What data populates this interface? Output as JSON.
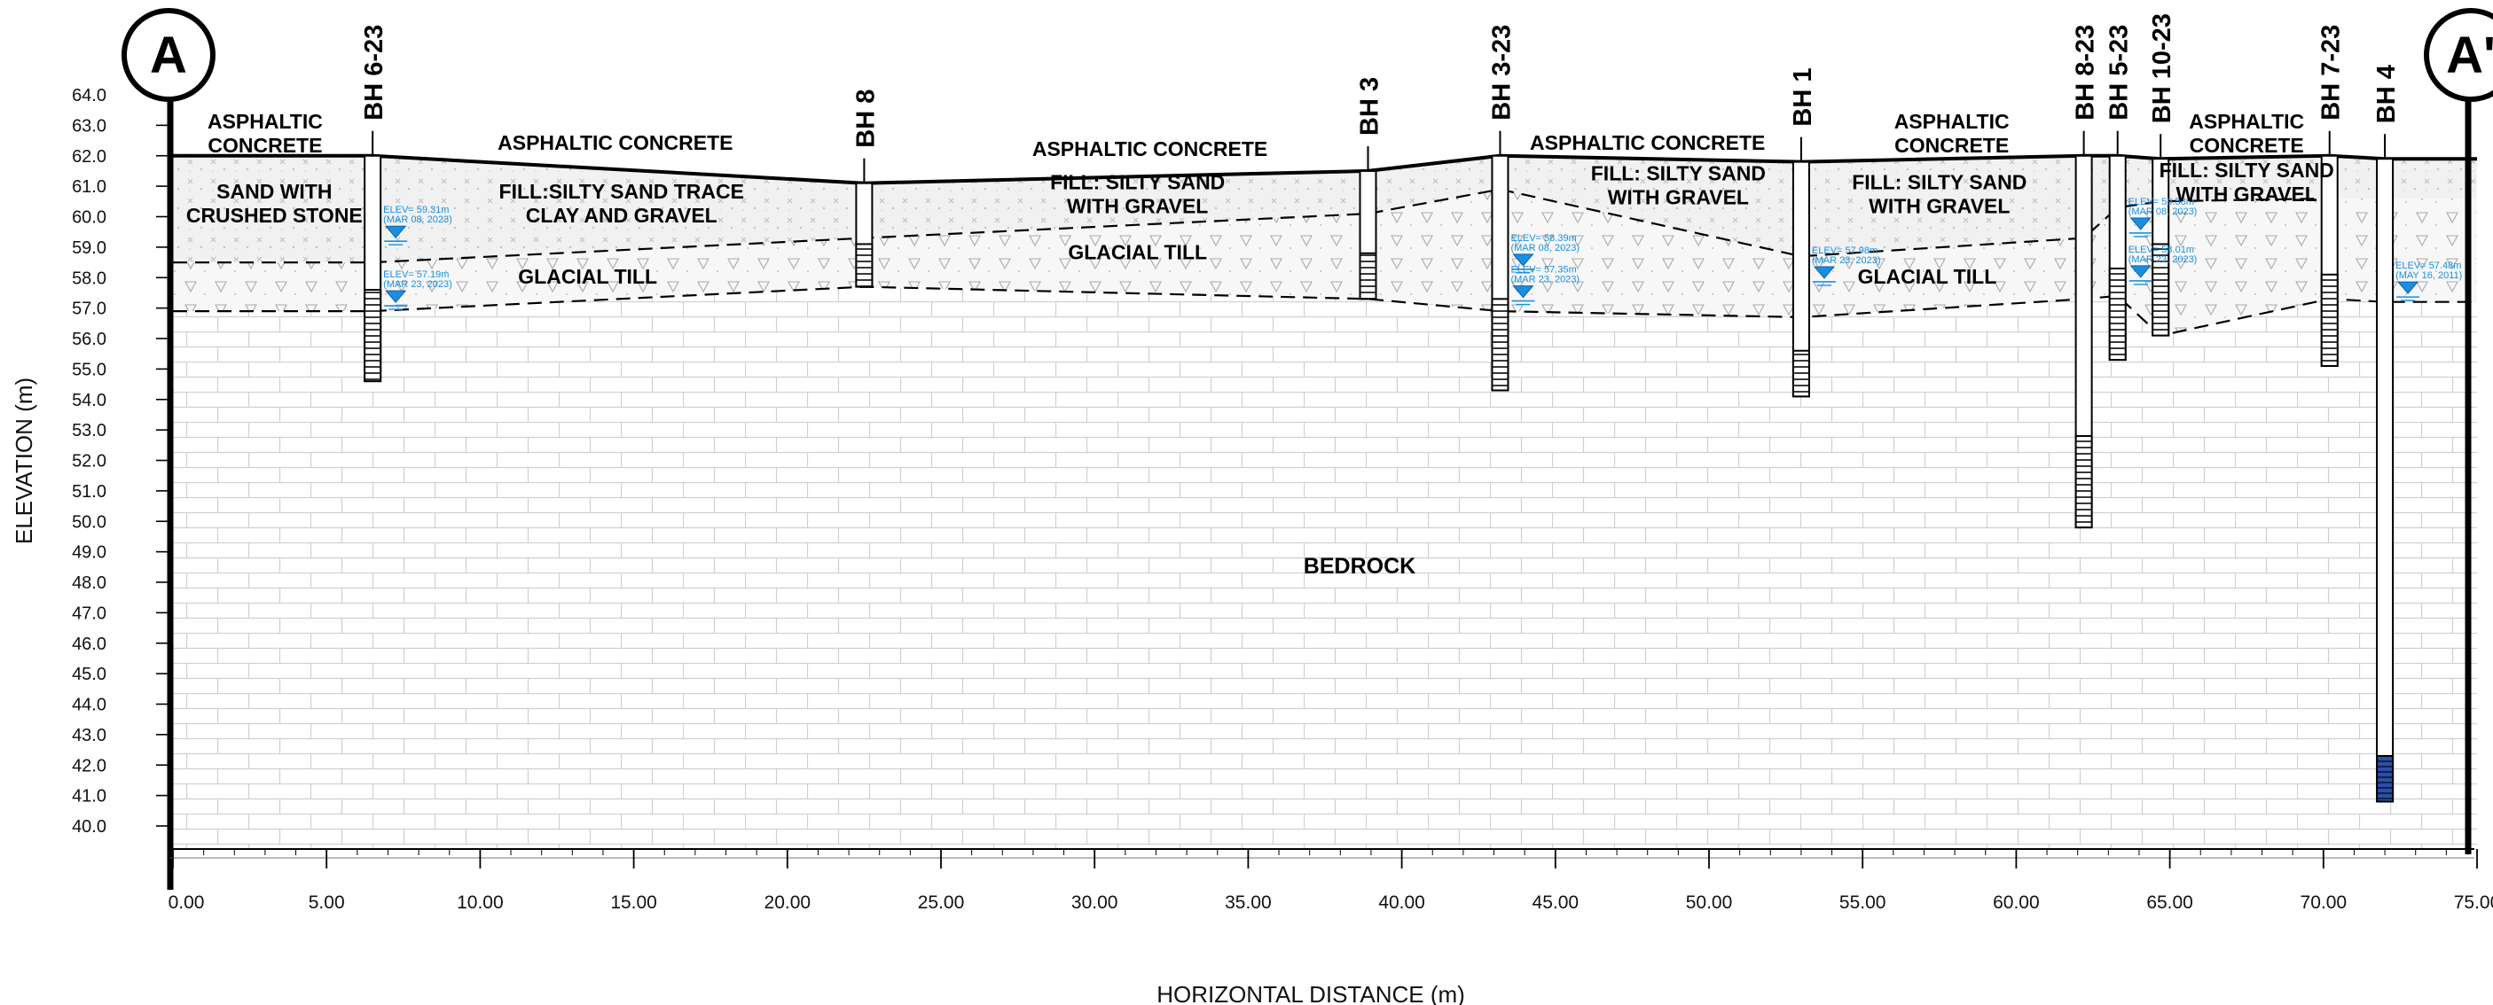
{
  "section": {
    "start_marker": "A",
    "end_marker": "A'",
    "ylabel": "ELEVATION (m)",
    "xlabel": "HORIZONTAL DISTANCE (m)",
    "bedrock_label": "BEDROCK"
  },
  "chart_data": {
    "type": "diagram",
    "x_range": [
      0,
      75
    ],
    "y_range": [
      40,
      64
    ],
    "x_ticks": [
      "0.00",
      "5.00",
      "10.00",
      "15.00",
      "20.00",
      "25.00",
      "30.00",
      "35.00",
      "40.00",
      "45.00",
      "50.00",
      "55.00",
      "60.00",
      "65.00",
      "70.00",
      "75.00"
    ],
    "y_ticks": [
      "64.0",
      "63.0",
      "62.0",
      "61.0",
      "60.0",
      "59.0",
      "58.0",
      "57.0",
      "56.0",
      "55.0",
      "54.0",
      "53.0",
      "52.0",
      "51.0",
      "50.0",
      "49.0",
      "48.0",
      "47.0",
      "46.0",
      "45.0",
      "44.0",
      "43.0",
      "42.0",
      "41.0",
      "40.0"
    ],
    "ground_surface": [
      [
        0,
        62.0
      ],
      [
        6.5,
        62.0
      ],
      [
        22.5,
        61.1
      ],
      [
        38.9,
        61.5
      ],
      [
        43.2,
        62.0
      ],
      [
        53.0,
        61.8
      ],
      [
        62.2,
        62.0
      ],
      [
        63.3,
        62.0
      ],
      [
        64.7,
        61.9
      ],
      [
        70.2,
        62.0
      ],
      [
        72,
        61.9
      ],
      [
        75,
        61.9
      ]
    ],
    "fill_base": [
      [
        0,
        58.5
      ],
      [
        6.5,
        58.5
      ],
      [
        22.5,
        59.3
      ],
      [
        38.9,
        60.1
      ],
      [
        43.2,
        60.9
      ],
      [
        53.0,
        58.7
      ],
      [
        62.2,
        59.3
      ],
      [
        63.3,
        60.3
      ],
      [
        64.7,
        60.5
      ],
      [
        70.2,
        60.6
      ]
    ],
    "bedrock_surface": [
      [
        0,
        56.9
      ],
      [
        6.5,
        56.9
      ],
      [
        22.5,
        57.7
      ],
      [
        38.9,
        57.3
      ],
      [
        43.2,
        56.9
      ],
      [
        53.0,
        56.7
      ],
      [
        62.2,
        57.3
      ],
      [
        63.3,
        57.4
      ],
      [
        64.7,
        56.1
      ],
      [
        70.2,
        57.3
      ],
      [
        72,
        57.2
      ],
      [
        75,
        57.2
      ]
    ],
    "boreholes": [
      {
        "name": "BH 6-23",
        "x": 6.5,
        "top": 62.0,
        "bottom": 54.6,
        "screen_top": 57.6,
        "screen_bottom": 54.6,
        "screen_style": "hatched"
      },
      {
        "name": "BH 8",
        "x": 22.5,
        "top": 61.1,
        "bottom": 57.7,
        "screen_top": 59.1,
        "screen_bottom": 57.7,
        "screen_style": "hatched"
      },
      {
        "name": "BH 3",
        "x": 38.9,
        "top": 61.5,
        "bottom": 57.3,
        "screen_top": 58.8,
        "screen_bottom": 57.3,
        "screen_style": "hatched"
      },
      {
        "name": "BH 3-23",
        "x": 43.2,
        "top": 62.0,
        "bottom": 54.3,
        "screen_top": 57.3,
        "screen_bottom": 54.3,
        "screen_style": "hatched"
      },
      {
        "name": "BH 1",
        "x": 53.0,
        "top": 61.8,
        "bottom": 54.1,
        "screen_top": 55.6,
        "screen_bottom": 54.1,
        "screen_style": "hatched"
      },
      {
        "name": "BH 8-23",
        "x": 62.2,
        "top": 62.0,
        "bottom": 49.8,
        "screen_top": 52.8,
        "screen_bottom": 49.8,
        "screen_style": "hatched"
      },
      {
        "name": "BH 5-23",
        "x": 63.3,
        "top": 62.0,
        "bottom": 55.3,
        "screen_top": 58.3,
        "screen_bottom": 55.3,
        "screen_style": "hatched"
      },
      {
        "name": "BH 10-23",
        "x": 64.7,
        "top": 61.9,
        "bottom": 56.1,
        "screen_top": 59.1,
        "screen_bottom": 56.1,
        "screen_style": "hatched"
      },
      {
        "name": "BH 7-23",
        "x": 70.2,
        "top": 62.0,
        "bottom": 55.1,
        "screen_top": 58.1,
        "screen_bottom": 55.1,
        "screen_style": "hatched"
      },
      {
        "name": "BH 4",
        "x": 72.0,
        "top": 61.9,
        "bottom": 40.8,
        "screen_top": 42.3,
        "screen_bottom": 40.8,
        "screen_style": "blue"
      }
    ],
    "water_levels": [
      {
        "text": "ELEV= 59.31m",
        "date": "(MAR 08, 2023)",
        "x": 6.5,
        "elev": 59.31
      },
      {
        "text": "ELEV= 57.19m",
        "date": "(MAR 23, 2023)",
        "x": 6.5,
        "elev": 57.19
      },
      {
        "text": "ELEV= 58.39m",
        "date": "(MAR 08, 2023)",
        "x": 43.2,
        "elev": 58.39
      },
      {
        "text": "ELEV= 57.35m",
        "date": "(MAR 23, 2023)",
        "x": 43.2,
        "elev": 57.35
      },
      {
        "text": "ELEV= 57.98m",
        "date": "(MAR 23, 2023)",
        "x": 53.0,
        "elev": 57.98
      },
      {
        "text": "ELEV= 59.58m",
        "date": "(MAR 08, 2023)",
        "x": 63.3,
        "elev": 59.58
      },
      {
        "text": "ELEV= 58.01m",
        "date": "(MAR 23, 2023)",
        "x": 63.3,
        "elev": 58.01
      },
      {
        "text": "ELEV= 57.48m",
        "date": "(MAY 16, 2011)",
        "x": 72.0,
        "elev": 57.48
      }
    ],
    "layer_labels": [
      {
        "lines": [
          "ASPHALTIC",
          "CONCRETE"
        ],
        "x": 3.0,
        "y": 62.9
      },
      {
        "lines": [
          "ASPHALTIC CONCRETE"
        ],
        "x": 14.4,
        "y": 62.2
      },
      {
        "lines": [
          "ASPHALTIC CONCRETE"
        ],
        "x": 31.8,
        "y": 62.0
      },
      {
        "lines": [
          "ASPHALTIC CONCRETE"
        ],
        "x": 48.0,
        "y": 62.2
      },
      {
        "lines": [
          "ASPHALTIC",
          "CONCRETE"
        ],
        "x": 57.9,
        "y": 62.9
      },
      {
        "lines": [
          "ASPHALTIC",
          "CONCRETE"
        ],
        "x": 67.5,
        "y": 62.9
      },
      {
        "lines": [
          "SAND WITH",
          "CRUSHED STONE"
        ],
        "x": 3.3,
        "y": 60.6
      },
      {
        "lines": [
          "FILL:SILTY SAND TRACE",
          "CLAY AND GRAVEL"
        ],
        "x": 14.6,
        "y": 60.6
      },
      {
        "lines": [
          "FILL: SILTY SAND",
          "WITH GRAVEL"
        ],
        "x": 31.4,
        "y": 60.9
      },
      {
        "lines": [
          "FILL: SILTY SAND",
          "WITH GRAVEL"
        ],
        "x": 49.0,
        "y": 61.2
      },
      {
        "lines": [
          "FILL: SILTY SAND",
          "WITH GRAVEL"
        ],
        "x": 57.5,
        "y": 60.9
      },
      {
        "lines": [
          "FILL: SILTY SAND",
          "WITH GRAVEL"
        ],
        "x": 67.5,
        "y": 61.3
      },
      {
        "lines": [
          "GLACIAL TILL"
        ],
        "x": 13.5,
        "y": 57.8
      },
      {
        "lines": [
          "GLACIAL TILL"
        ],
        "x": 31.4,
        "y": 58.6
      },
      {
        "lines": [
          "GLACIAL TILL"
        ],
        "x": 57.1,
        "y": 57.8
      }
    ]
  }
}
